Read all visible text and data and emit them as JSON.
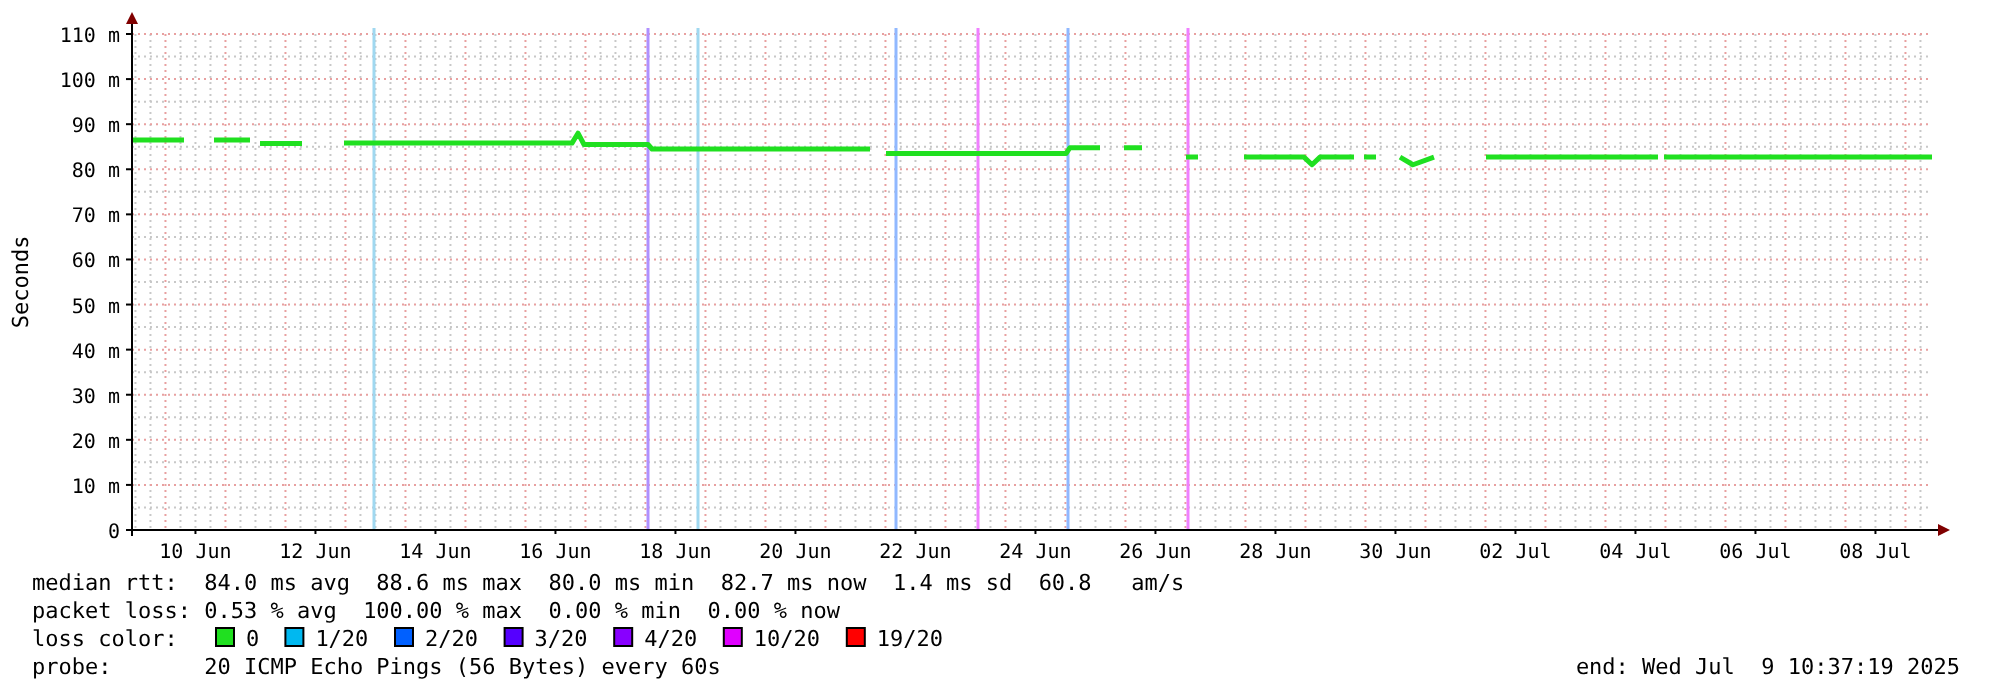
{
  "chart_data": {
    "type": "line",
    "ylabel": "Seconds",
    "legend_title": "loss color:",
    "legend": "bottom",
    "grid": true,
    "line_style": "solid",
    "xlim": [
      "2025-06-09T10:37",
      "2025-07-09T10:37"
    ],
    "xticks": [
      {
        "value": "2025-06-10T12:00",
        "label": "10 Jun"
      },
      {
        "value": "2025-06-12T12:00",
        "label": "12 Jun"
      },
      {
        "value": "2025-06-14T12:00",
        "label": "14 Jun"
      },
      {
        "value": "2025-06-16T12:00",
        "label": "16 Jun"
      },
      {
        "value": "2025-06-18T12:00",
        "label": "18 Jun"
      },
      {
        "value": "2025-06-20T12:00",
        "label": "20 Jun"
      },
      {
        "value": "2025-06-22T12:00",
        "label": "22 Jun"
      },
      {
        "value": "2025-06-24T12:00",
        "label": "24 Jun"
      },
      {
        "value": "2025-06-26T12:00",
        "label": "26 Jun"
      },
      {
        "value": "2025-06-28T12:00",
        "label": "28 Jun"
      },
      {
        "value": "2025-06-30T12:00",
        "label": "30 Jun"
      },
      {
        "value": "2025-07-02T12:00",
        "label": "02 Jul"
      },
      {
        "value": "2025-07-04T12:00",
        "label": "04 Jul"
      },
      {
        "value": "2025-07-06T12:00",
        "label": "06 Jul"
      },
      {
        "value": "2025-07-08T12:00",
        "label": "08 Jul"
      }
    ],
    "ylim": [
      0,
      110
    ],
    "yticks": [
      0,
      {
        "value": 10,
        "label": "10 m"
      },
      {
        "value": 20,
        "label": "20 m"
      },
      {
        "value": 30,
        "label": "30 m"
      },
      {
        "value": 40,
        "label": "40 m"
      },
      {
        "value": 50,
        "label": "50 m"
      },
      {
        "value": 60,
        "label": "60 m"
      },
      {
        "value": 70,
        "label": "70 m"
      },
      {
        "value": 80,
        "label": "80 m"
      },
      {
        "value": 90,
        "label": "90 m"
      },
      {
        "value": 100,
        "label": "100 m"
      },
      {
        "value": 110,
        "label": "110 m"
      }
    ],
    "series": [
      {
        "name": "0",
        "color": "#20e020",
        "x": [
          "2025-06-09T10:37",
          "2025-06-10T07:25",
          "2025-06-10T13:00",
          "2025-06-10T19:25",
          "2025-06-11T09:49",
          "2025-06-11T11:00",
          "2025-06-11T13:49",
          "2025-06-12T06:37",
          "2025-06-12T15:00",
          "2025-06-12T23:25",
          "2025-06-16T18:37",
          "2025-06-16T21:01",
          "2025-06-16T23:25",
          "2025-06-18T01:01",
          "2025-06-18T02:37",
          "2025-06-21T17:49",
          "2025-06-21T21:00",
          "2025-06-22T00:13",
          "2025-06-25T00:13",
          "2025-06-25T01:49",
          "2025-06-25T13:49",
          "2025-06-25T18:00",
          "2025-06-25T23:25",
          "2025-06-26T06:37",
          "2025-06-26T15:00",
          "2025-06-27T00:13",
          "2025-06-27T05:01",
          "2025-06-27T15:00",
          "2025-06-27T23:25",
          "2025-06-28T23:25",
          "2025-06-29T02:37",
          "2025-06-29T05:49",
          "2025-06-29T19:25",
          "2025-06-29T21:00",
          "2025-06-29T23:25",
          "2025-06-30T04:13",
          "2025-06-30T09:00",
          "2025-06-30T13:49",
          "2025-06-30T19:00",
          "2025-07-01T03:25",
          "2025-07-01T15:00",
          "2025-07-02T00:13",
          "2025-07-04T21:01",
          "2025-07-04T22:00",
          "2025-07-04T23:25",
          "2025-07-09T10:37"
        ],
        "values": [
          86.5,
          86.5,
          null,
          86.5,
          86.5,
          null,
          85.7,
          85.7,
          null,
          85.8,
          85.8,
          88,
          85.5,
          85.5,
          84.5,
          84.5,
          null,
          83.5,
          83.5,
          84.8,
          84.8,
          null,
          84.8,
          84.8,
          null,
          82.7,
          82.7,
          null,
          82.7,
          82.7,
          81,
          82.7,
          82.7,
          null,
          82.7,
          82.7,
          null,
          82.7,
          81,
          82.7,
          null,
          82.7,
          82.7,
          null,
          82.7,
          82.7
        ]
      },
      {
        "name": "1/20",
        "color": "#00b8f0"
      },
      {
        "name": "2/20",
        "color": "#0060ff"
      },
      {
        "name": "3/20",
        "color": "#5500ff"
      },
      {
        "name": "4/20",
        "color": "#8800ff"
      },
      {
        "name": "10/20",
        "color": "#e000ff"
      },
      {
        "name": "19/20",
        "color": "#ff0000"
      }
    ],
    "ref_lines": [
      {
        "axis": "x",
        "value": "2025-06-13T11:25",
        "color": "#a0d8f0"
      },
      {
        "axis": "x",
        "value": "2025-06-18T01:01",
        "color": "#b090ff"
      },
      {
        "axis": "x",
        "value": "2025-06-18T21:01",
        "color": "#a0d8f0"
      },
      {
        "axis": "x",
        "value": "2025-06-22T04:13",
        "color": "#90b8ff"
      },
      {
        "axis": "x",
        "value": "2025-06-23T13:01",
        "color": "#f080ff"
      },
      {
        "axis": "x",
        "value": "2025-06-25T01:01",
        "color": "#90b8ff"
      },
      {
        "axis": "x",
        "value": "2025-06-27T01:01",
        "color": "#f080ff"
      }
    ],
    "annotations": [
      "median rtt:  84.0 ms avg  88.6 ms max  80.0 ms min  82.7 ms now  1.4 ms sd  60.8   am/s",
      "packet loss: 0.53 % avg  100.00 % max  0.00 % min  0.00 % now",
      "probe:       20 ICMP Echo Pings (56 Bytes) every 60s",
      "end: Wed Jul  9 10:37:19 2025"
    ]
  }
}
